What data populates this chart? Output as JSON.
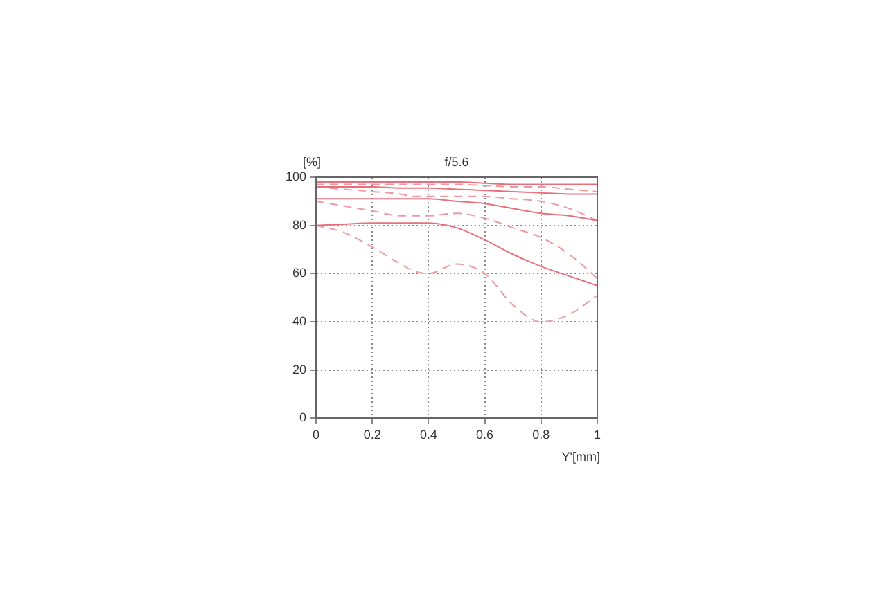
{
  "chart_data": {
    "type": "line",
    "title": "f/5.6",
    "xlabel": "Y'[mm]",
    "ylabel": "[%]",
    "x": [
      0,
      0.1,
      0.2,
      0.3,
      0.35,
      0.4,
      0.5,
      0.6,
      0.7,
      0.8,
      0.9,
      1
    ],
    "series": [
      {
        "color": "#e8707c",
        "line_style": "solid",
        "values": [
          98,
          98,
          98,
          98,
          98,
          98,
          98,
          97.5,
          97,
          97,
          97,
          97
        ]
      },
      {
        "color": "#e8707c",
        "line_style": "solid",
        "values": [
          96,
          96,
          96,
          95.5,
          95.5,
          95.5,
          95,
          94.5,
          94,
          93.5,
          93,
          93
        ]
      },
      {
        "color": "#e8707c",
        "line_style": "solid",
        "values": [
          91,
          91,
          91,
          91,
          91,
          91,
          90,
          89,
          87,
          85,
          84,
          82
        ]
      },
      {
        "color": "#e8707c",
        "line_style": "solid",
        "values": [
          80,
          80.5,
          81,
          81,
          81,
          81,
          79,
          74,
          68,
          63,
          59,
          55
        ]
      },
      {
        "color": "#ee9aa2",
        "line_style": "dashed",
        "values": [
          97,
          97,
          97,
          97,
          97,
          97,
          97,
          96.5,
          96,
          96,
          95,
          94
        ]
      },
      {
        "color": "#ee9aa2",
        "line_style": "dashed",
        "values": [
          96,
          95,
          94,
          93,
          92,
          92,
          92,
          92,
          91,
          90,
          87,
          82
        ]
      },
      {
        "color": "#ee9aa2",
        "line_style": "dashed",
        "values": [
          90,
          88,
          86,
          84,
          84,
          84,
          85,
          83,
          79,
          75,
          68,
          58
        ]
      },
      {
        "color": "#ee9aa2",
        "line_style": "dashed",
        "values": [
          80,
          77,
          71,
          64,
          61,
          60,
          64,
          60,
          47,
          40,
          43,
          51
        ]
      }
    ],
    "xlim": [
      0,
      1
    ],
    "xticks": [
      0,
      0.2,
      0.4,
      0.6,
      0.8,
      1
    ],
    "ylim": [
      0,
      100
    ],
    "yticks": [
      0,
      20,
      40,
      60,
      80,
      100
    ],
    "grid": true,
    "legend": false,
    "marker": "none"
  }
}
